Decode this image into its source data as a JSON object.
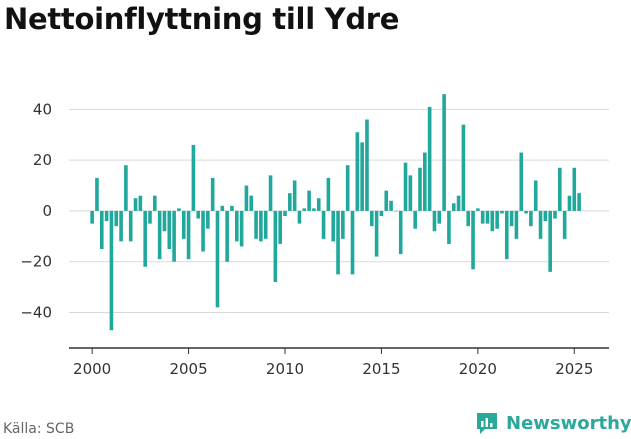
{
  "title": "Nettoinflyttning till Ydre",
  "source": "Källa: SCB",
  "brand": "Newsworthy",
  "colors": {
    "bar": "#1fa89b",
    "grid": "#d9d9d9",
    "axis": "#333333",
    "brand": "#2aa89a"
  },
  "chart_data": {
    "type": "bar",
    "title": "Nettoinflyttning till Ydre",
    "xlabel": "",
    "ylabel": "",
    "xlim": [
      1998.8,
      2026.8
    ],
    "ylim": [
      -54,
      50
    ],
    "yticks": [
      -40,
      -20,
      0,
      20,
      40
    ],
    "ytick_labels": [
      "−40",
      "−20",
      "0",
      "20",
      "40"
    ],
    "xticks": [
      2000,
      2005,
      2010,
      2015,
      2020,
      2025
    ],
    "xtick_labels": [
      "2000",
      "2005",
      "2010",
      "2015",
      "2020",
      "2025"
    ],
    "grid": true,
    "series": [
      {
        "values": [
          [
            2000.0,
            -5
          ],
          [
            2000.25,
            13
          ],
          [
            2000.5,
            -15
          ],
          [
            2000.75,
            -4
          ],
          [
            2001.0,
            -47
          ],
          [
            2001.25,
            -6
          ],
          [
            2001.5,
            -12
          ],
          [
            2001.75,
            18
          ],
          [
            2002.0,
            -12
          ],
          [
            2002.25,
            5
          ],
          [
            2002.5,
            6
          ],
          [
            2002.75,
            -22
          ],
          [
            2003.0,
            -5
          ],
          [
            2003.25,
            6
          ],
          [
            2003.5,
            -19
          ],
          [
            2003.75,
            -8
          ],
          [
            2004.0,
            -15
          ],
          [
            2004.25,
            -20
          ],
          [
            2004.5,
            1
          ],
          [
            2004.75,
            -11
          ],
          [
            2005.0,
            -19
          ],
          [
            2005.25,
            26
          ],
          [
            2005.5,
            -3
          ],
          [
            2005.75,
            -16
          ],
          [
            2006.0,
            -7
          ],
          [
            2006.25,
            13
          ],
          [
            2006.5,
            -38
          ],
          [
            2006.75,
            2
          ],
          [
            2007.0,
            -20
          ],
          [
            2007.25,
            2
          ],
          [
            2007.5,
            -12
          ],
          [
            2007.75,
            -14
          ],
          [
            2008.0,
            10
          ],
          [
            2008.25,
            6
          ],
          [
            2008.5,
            -11
          ],
          [
            2008.75,
            -12
          ],
          [
            2009.0,
            -11
          ],
          [
            2009.25,
            14
          ],
          [
            2009.5,
            -28
          ],
          [
            2009.75,
            -13
          ],
          [
            2010.0,
            -2
          ],
          [
            2010.25,
            7
          ],
          [
            2010.5,
            12
          ],
          [
            2010.75,
            -5
          ],
          [
            2011.0,
            1
          ],
          [
            2011.25,
            8
          ],
          [
            2011.5,
            1
          ],
          [
            2011.75,
            5
          ],
          [
            2012.0,
            -11
          ],
          [
            2012.25,
            13
          ],
          [
            2012.5,
            -12
          ],
          [
            2012.75,
            -25
          ],
          [
            2013.0,
            -11
          ],
          [
            2013.25,
            18
          ],
          [
            2013.5,
            -25
          ],
          [
            2013.75,
            31
          ],
          [
            2014.0,
            27
          ],
          [
            2014.25,
            36
          ],
          [
            2014.5,
            -6
          ],
          [
            2014.75,
            -18
          ],
          [
            2015.0,
            -2
          ],
          [
            2015.25,
            8
          ],
          [
            2015.5,
            4
          ],
          [
            2015.75,
            0
          ],
          [
            2016.0,
            -17
          ],
          [
            2016.25,
            19
          ],
          [
            2016.5,
            14
          ],
          [
            2016.75,
            -7
          ],
          [
            2017.0,
            17
          ],
          [
            2017.25,
            23
          ],
          [
            2017.5,
            41
          ],
          [
            2017.75,
            -8
          ],
          [
            2018.0,
            -5
          ],
          [
            2018.25,
            46
          ],
          [
            2018.5,
            -13
          ],
          [
            2018.75,
            3
          ],
          [
            2019.0,
            6
          ],
          [
            2019.25,
            34
          ],
          [
            2019.5,
            -6
          ],
          [
            2019.75,
            -23
          ],
          [
            2020.0,
            1
          ],
          [
            2020.25,
            -5
          ],
          [
            2020.5,
            -5
          ],
          [
            2020.75,
            -8
          ],
          [
            2021.0,
            -7
          ],
          [
            2021.25,
            -1
          ],
          [
            2021.5,
            -19
          ],
          [
            2021.75,
            -6
          ],
          [
            2022.0,
            -11
          ],
          [
            2022.25,
            23
          ],
          [
            2022.5,
            -1
          ],
          [
            2022.75,
            -6
          ],
          [
            2023.0,
            12
          ],
          [
            2023.25,
            -11
          ],
          [
            2023.5,
            -4
          ],
          [
            2023.75,
            -24
          ],
          [
            2024.0,
            -3
          ],
          [
            2024.25,
            17
          ],
          [
            2024.5,
            -11
          ],
          [
            2024.75,
            6
          ],
          [
            2025.0,
            17
          ],
          [
            2025.25,
            7
          ]
        ]
      }
    ]
  }
}
